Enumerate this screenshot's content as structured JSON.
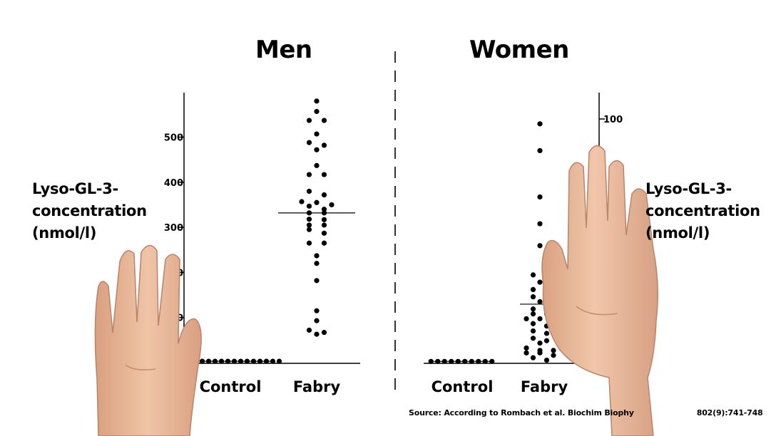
{
  "titles": {
    "men": "Men",
    "women": "Women"
  },
  "ylabel_left": {
    "line1": "Lyso-GL-3-",
    "line2": "concentration",
    "line3": "(nmol/l)"
  },
  "ylabel_right": {
    "line1": "Lyso-GL-3-",
    "line2": "concentration",
    "line3": "(nmol/l)"
  },
  "source": "Source: According to Rombach et al. Biochim Biophy",
  "source_tail": "802(9):741-748",
  "colors": {
    "dots": "#000000",
    "axis": "#000000",
    "divider": "#333333",
    "skin": "#e9b79a"
  },
  "chart_data": [
    {
      "type": "scatter",
      "title": "Men",
      "ylabel": "Lyso-GL-3-concentration (nmol/l)",
      "categories": [
        "Control",
        "Fabry"
      ],
      "ylim": [
        0,
        600
      ],
      "yticks": [
        100,
        200,
        300,
        400,
        500
      ],
      "ytick_labels_visible": [
        "300",
        "400",
        "500"
      ],
      "grid": false,
      "series": [
        {
          "category": "Control",
          "mean": 3,
          "values": [
            3,
            3,
            3,
            3,
            3,
            3,
            3,
            3,
            3,
            3,
            3,
            3,
            3,
            3
          ]
        },
        {
          "category": "Fabry",
          "mean": 332,
          "values": [
            580,
            557,
            537,
            537,
            507,
            488,
            482,
            472,
            437,
            417,
            417,
            380,
            372,
            357,
            355,
            350,
            347,
            340,
            332,
            332,
            318,
            317,
            305,
            305,
            295,
            287,
            265,
            265,
            237,
            220,
            182,
            115,
            93,
            72,
            67,
            63
          ]
        }
      ]
    },
    {
      "type": "scatter",
      "title": "Women",
      "ylabel": "Lyso-GL-3-concentration (nmol/l)",
      "categories": [
        "Control",
        "Fabry"
      ],
      "ylim": [
        0,
        112
      ],
      "yticks": [
        100
      ],
      "ytick_labels_visible": [
        "100"
      ],
      "grid": false,
      "series": [
        {
          "category": "Control",
          "mean": 0.5,
          "values": [
            0.5,
            0.5,
            0.5,
            0.5,
            0.5,
            0.5,
            0.5,
            0.5,
            0.5,
            0.5
          ]
        },
        {
          "category": "Fabry",
          "mean": 24,
          "values": [
            98,
            87,
            68,
            57,
            48,
            36,
            36,
            33,
            30,
            30,
            27,
            27,
            25,
            22,
            21,
            20,
            20,
            18,
            18,
            17,
            16,
            15,
            13,
            12,
            10,
            9,
            8,
            6,
            5,
            5,
            4,
            4,
            3,
            2,
            1
          ]
        }
      ]
    }
  ]
}
